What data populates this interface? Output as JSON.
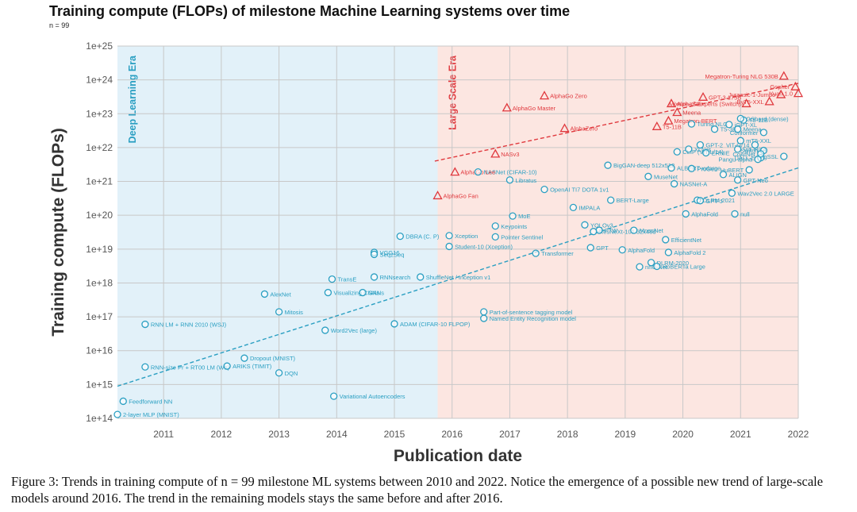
{
  "page": {
    "title": "Training compute (FLOPs) of milestone Machine Learning systems over time",
    "subtitle": "n = 99",
    "caption": "Figure 3: Trends in training compute of n = 99 milestone ML systems between 2010 and 2022. Notice the emergence of a possible new trend of large-scale models around 2016. The trend in the remaining models stays the same before and after 2016."
  },
  "colors": {
    "deep_era_bg": "#e2f1f9",
    "large_era_bg": "#fce6e1",
    "deep_color": "#2a9fc2",
    "large_color": "#e0393e",
    "grid": "#c8c8c8"
  },
  "chart_data": {
    "type": "scatter",
    "title": "Training compute (FLOPs) of milestone Machine Learning systems over time",
    "xlabel": "Publication date",
    "ylabel": "Training compute (FLOPs)",
    "xlim": [
      2010.2,
      2022.0
    ],
    "ylim_log10": [
      14,
      25
    ],
    "y_scale": "log",
    "grid": true,
    "x_ticks": [
      "2011",
      "2012",
      "2013",
      "2014",
      "2015",
      "2016",
      "2017",
      "2018",
      "2019",
      "2020",
      "2021",
      "2022"
    ],
    "y_ticks": [
      "1e+14",
      "1e+15",
      "1e+16",
      "1e+17",
      "1e+18",
      "1e+19",
      "1e+20",
      "1e+21",
      "1e+22",
      "1e+23",
      "1e+24",
      "1e+25"
    ],
    "regions": [
      {
        "label": "Deep Learning Era",
        "x_range": [
          2010.2,
          2015.75
        ]
      },
      {
        "label": "Large Scale Era",
        "x_range": [
          2015.75,
          2022.0
        ]
      }
    ],
    "trend_lines": [
      {
        "group": "deep",
        "x": [
          2010.2,
          2022.0
        ],
        "log10_y": [
          14.95,
          21.4
        ]
      },
      {
        "group": "large",
        "x": [
          2015.7,
          2022.0
        ],
        "log10_y": [
          21.6,
          23.9
        ]
      }
    ],
    "series": [
      {
        "group": "deep",
        "marker": "circle",
        "points": [
          {
            "label": "2-layer MLP (MNIST)",
            "x": 2010.2,
            "y": 130000000000000.0
          },
          {
            "label": "Feedforward NN",
            "x": 2010.3,
            "y": 320000000000000.0
          },
          {
            "label": "RNN LM + RNN 2010 (WSJ)",
            "x": 2010.68,
            "y": 6e+16
          },
          {
            "label": "RNN-size Pr + RT00 LM (Wh)",
            "x": 2010.68,
            "y": 3300000000000000.0
          },
          {
            "label": "Dropout (MNIST)",
            "x": 2012.4,
            "y": 6000000000000000.0
          },
          {
            "label": "ARIKS (TIMIT)",
            "x": 2012.1,
            "y": 3500000000000000.0
          },
          {
            "label": "DQN",
            "x": 2013.0,
            "y": 2200000000000000.0
          },
          {
            "label": "AlexNet",
            "x": 2012.75,
            "y": 4.7e+17
          },
          {
            "label": "Mitosis",
            "x": 2013.0,
            "y": 1.4e+17
          },
          {
            "label": "Word2Vec (large)",
            "x": 2013.8,
            "y": 4e+16
          },
          {
            "label": "Variational Autoencoders",
            "x": 2013.95,
            "y": 450000000000000.0
          },
          {
            "label": "TransE",
            "x": 2013.92,
            "y": 1.3e+18
          },
          {
            "label": "Visualizing CNNs",
            "x": 2013.85,
            "y": 5.2e+17
          },
          {
            "label": "GANs",
            "x": 2014.45,
            "y": 5.2e+17
          },
          {
            "label": "VGG16",
            "x": 2014.65,
            "y": 8e+18
          },
          {
            "label": "Seq2Seq",
            "x": 2014.65,
            "y": 7e+18
          },
          {
            "label": "RNNsearch",
            "x": 2014.65,
            "y": 1.5e+18
          },
          {
            "label": "ShuffleNet / Inception v1",
            "x": 2015.45,
            "y": 1.5e+18
          },
          {
            "label": "DBRA (C. P)",
            "x": 2015.1,
            "y": 2.4e+19
          },
          {
            "label": "Part-of-sentence tagging model",
            "x": 2016.55,
            "y": 1.4e+17
          },
          {
            "label": "Named Entity Recognition model",
            "x": 2016.55,
            "y": 9e+16
          },
          {
            "label": "ADAM (CIFAR-10 FLPOP)",
            "x": 2015.0,
            "y": 6.2e+16
          }
        ]
      },
      {
        "group": "post2016",
        "marker": "circle",
        "points": [
          {
            "label": "Xception",
            "x": 2015.95,
            "y": 2.5e+19
          },
          {
            "label": "Pointer Sentinel",
            "x": 2016.75,
            "y": 2.3e+19
          },
          {
            "label": "Student-10 (Xception)",
            "x": 2015.95,
            "y": 1.2e+19
          },
          {
            "label": "NASNet (CIFAR-10)",
            "x": 2016.45,
            "y": 1.9e+21
          },
          {
            "label": "Libratus",
            "x": 2017.0,
            "y": 1.1e+21
          },
          {
            "label": "MoE",
            "x": 2017.05,
            "y": 9.5e+19
          },
          {
            "label": "Keypoints",
            "x": 2016.75,
            "y": 4.8e+19
          },
          {
            "label": "Transformer",
            "x": 2017.45,
            "y": 7.5e+18
          },
          {
            "label": "OpenAI TI7 DOTA 1v1",
            "x": 2017.6,
            "y": 5.8e+20
          },
          {
            "label": "IMPALA",
            "x": 2018.1,
            "y": 1.7e+20
          },
          {
            "label": "BERT-Large",
            "x": 2018.75,
            "y": 2.8e+20
          },
          {
            "label": "BigGAN-deep 512x512",
            "x": 2018.7,
            "y": 3e+21
          },
          {
            "label": "MuseNet",
            "x": 2019.4,
            "y": 1.4e+21
          },
          {
            "label": "ALBERT-xxlarge",
            "x": 2019.8,
            "y": 2.5e+21
          },
          {
            "label": "YOLOv3",
            "x": 2018.3,
            "y": 5.2e+19
          },
          {
            "label": "FTW",
            "x": 2018.55,
            "y": 3.6e+19
          },
          {
            "label": "GPT",
            "x": 2018.4,
            "y": 1.1e+19
          },
          {
            "label": "ResNeXt-101 32x48d",
            "x": 2018.45,
            "y": 3.3e+19
          },
          {
            "label": "MnasNet",
            "x": 2019.15,
            "y": 3.6e+19
          },
          {
            "label": "EfficientNet",
            "x": 2019.7,
            "y": 1.9e+19
          },
          {
            "label": "AlphaFold",
            "x": 2018.95,
            "y": 9.5e+18
          },
          {
            "label": "DLRM-2020",
            "x": 2019.45,
            "y": 4e+18
          },
          {
            "label": "nnU-Net",
            "x": 2019.25,
            "y": 3e+18
          },
          {
            "label": "RoBERTa Large",
            "x": 2019.55,
            "y": 3.1e+18
          },
          {
            "label": "AlphaFold 2",
            "x": 2019.75,
            "y": 8e+18
          },
          {
            "label": "AlphaFold",
            "x": 2020.05,
            "y": 1.1e+20
          },
          {
            "label": "DLRM-2021",
            "x": 2020.25,
            "y": 2.8e+20
          },
          {
            "label": "NASNet-A",
            "x": 2019.85,
            "y": 8.5e+20
          },
          {
            "label": "CLIP (ViT-L/14)",
            "x": 2019.9,
            "y": 7.5e+21
          },
          {
            "label": "GPT-2",
            "x": 2020.3,
            "y": 1.2e+22
          },
          {
            "label": "XLNet",
            "x": 2020.1,
            "y": 9e+21
          },
          {
            "label": "ERNIE",
            "x": 2020.4,
            "y": 7e+21
          },
          {
            "label": "T5-3B",
            "x": 2020.55,
            "y": 3.5e+22
          },
          {
            "label": "Meena",
            "x": 2020.95,
            "y": 3.5e+22
          },
          {
            "label": "iGPT-XL",
            "x": 2020.8,
            "y": 4.8e+22
          },
          {
            "label": "T5-11B",
            "x": 2021.05,
            "y": 6.5e+22
          },
          {
            "label": "GShard (dense)",
            "x": 2021.0,
            "y": 7.2e+22
          },
          {
            "label": "ViT-G/14",
            "x": 2021.25,
            "y": 1.2e+22
          },
          {
            "label": "Switch",
            "x": 2021.4,
            "y": 8.2e+21
          },
          {
            "label": "DALL-E",
            "x": 2021.35,
            "y": 5e+21
          },
          {
            "label": "Conformer",
            "x": 2021.4,
            "y": 2.8e+22
          },
          {
            "label": "mT5-XXL",
            "x": 2021.0,
            "y": 1.6e+22
          },
          {
            "label": "ViT-H/14",
            "x": 2020.95,
            "y": 9e+21
          },
          {
            "label": "CoAtNet",
            "x": 2021.35,
            "y": 6.5e+21
          },
          {
            "label": "BigSSL",
            "x": 2021.75,
            "y": 5.5e+21
          },
          {
            "label": "Pangu-alpha",
            "x": 2021.3,
            "y": 4.5e+21
          },
          {
            "label": "HuBERT",
            "x": 2021.15,
            "y": 2.2e+21
          },
          {
            "label": "ALIGN",
            "x": 2020.7,
            "y": 1.6e+21
          },
          {
            "label": "GPT-Neo",
            "x": 2020.95,
            "y": 1.1e+21
          },
          {
            "label": "Wav2Vec 2.0 LARGE",
            "x": 2020.85,
            "y": 4.5e+20
          },
          {
            "label": "GPT-J",
            "x": 2020.3,
            "y": 2.7e+20
          },
          {
            "label": "null",
            "x": 2020.9,
            "y": 1.1e+20
          },
          {
            "label": "ProGen",
            "x": 2020.15,
            "y": 2.4e+21
          },
          {
            "label": "Turing NLG",
            "x": 2020.15,
            "y": 5e+22
          }
        ]
      },
      {
        "group": "large",
        "marker": "triangle",
        "points": [
          {
            "label": "AlphaGo Fan",
            "x": 2015.75,
            "y": 3.8e+20
          },
          {
            "label": "AlphaGo Lee",
            "x": 2016.05,
            "y": 1.9e+21
          },
          {
            "label": "NASv3",
            "x": 2016.75,
            "y": 6.5e+21
          },
          {
            "label": "AlphaGo Master",
            "x": 2016.95,
            "y": 1.5e+23
          },
          {
            "label": "AlphaGo Zero",
            "x": 2017.6,
            "y": 3.4e+23
          },
          {
            "label": "AlphaZero",
            "x": 2017.95,
            "y": 3.7e+22
          },
          {
            "label": "T5-11B",
            "x": 2019.55,
            "y": 4.2e+22
          },
          {
            "label": "Megatron-BERT",
            "x": 2019.75,
            "y": 6.2e+22
          },
          {
            "label": "Meena",
            "x": 2019.9,
            "y": 1.1e+23
          },
          {
            "label": "AlphaStar",
            "x": 2019.8,
            "y": 2e+23
          },
          {
            "label": "GPT-3 175B",
            "x": 2020.35,
            "y": 3.1e+23
          },
          {
            "label": "Mixture-of-Experts (Switch)",
            "x": 2021.1,
            "y": 2e+23
          },
          {
            "label": "ByT5-XXL",
            "x": 2021.5,
            "y": 2.3e+23
          },
          {
            "label": "Jurassic-1-Jumbo",
            "x": 2021.7,
            "y": 3.7e+23
          },
          {
            "label": "Gopher",
            "x": 2021.95,
            "y": 6.3e+23
          },
          {
            "label": "Yuan 1.0",
            "x": 2022.0,
            "y": 4e+23
          },
          {
            "label": "Megatron-Turing NLG 530B",
            "x": 2021.75,
            "y": 1.3e+24
          }
        ]
      }
    ]
  }
}
